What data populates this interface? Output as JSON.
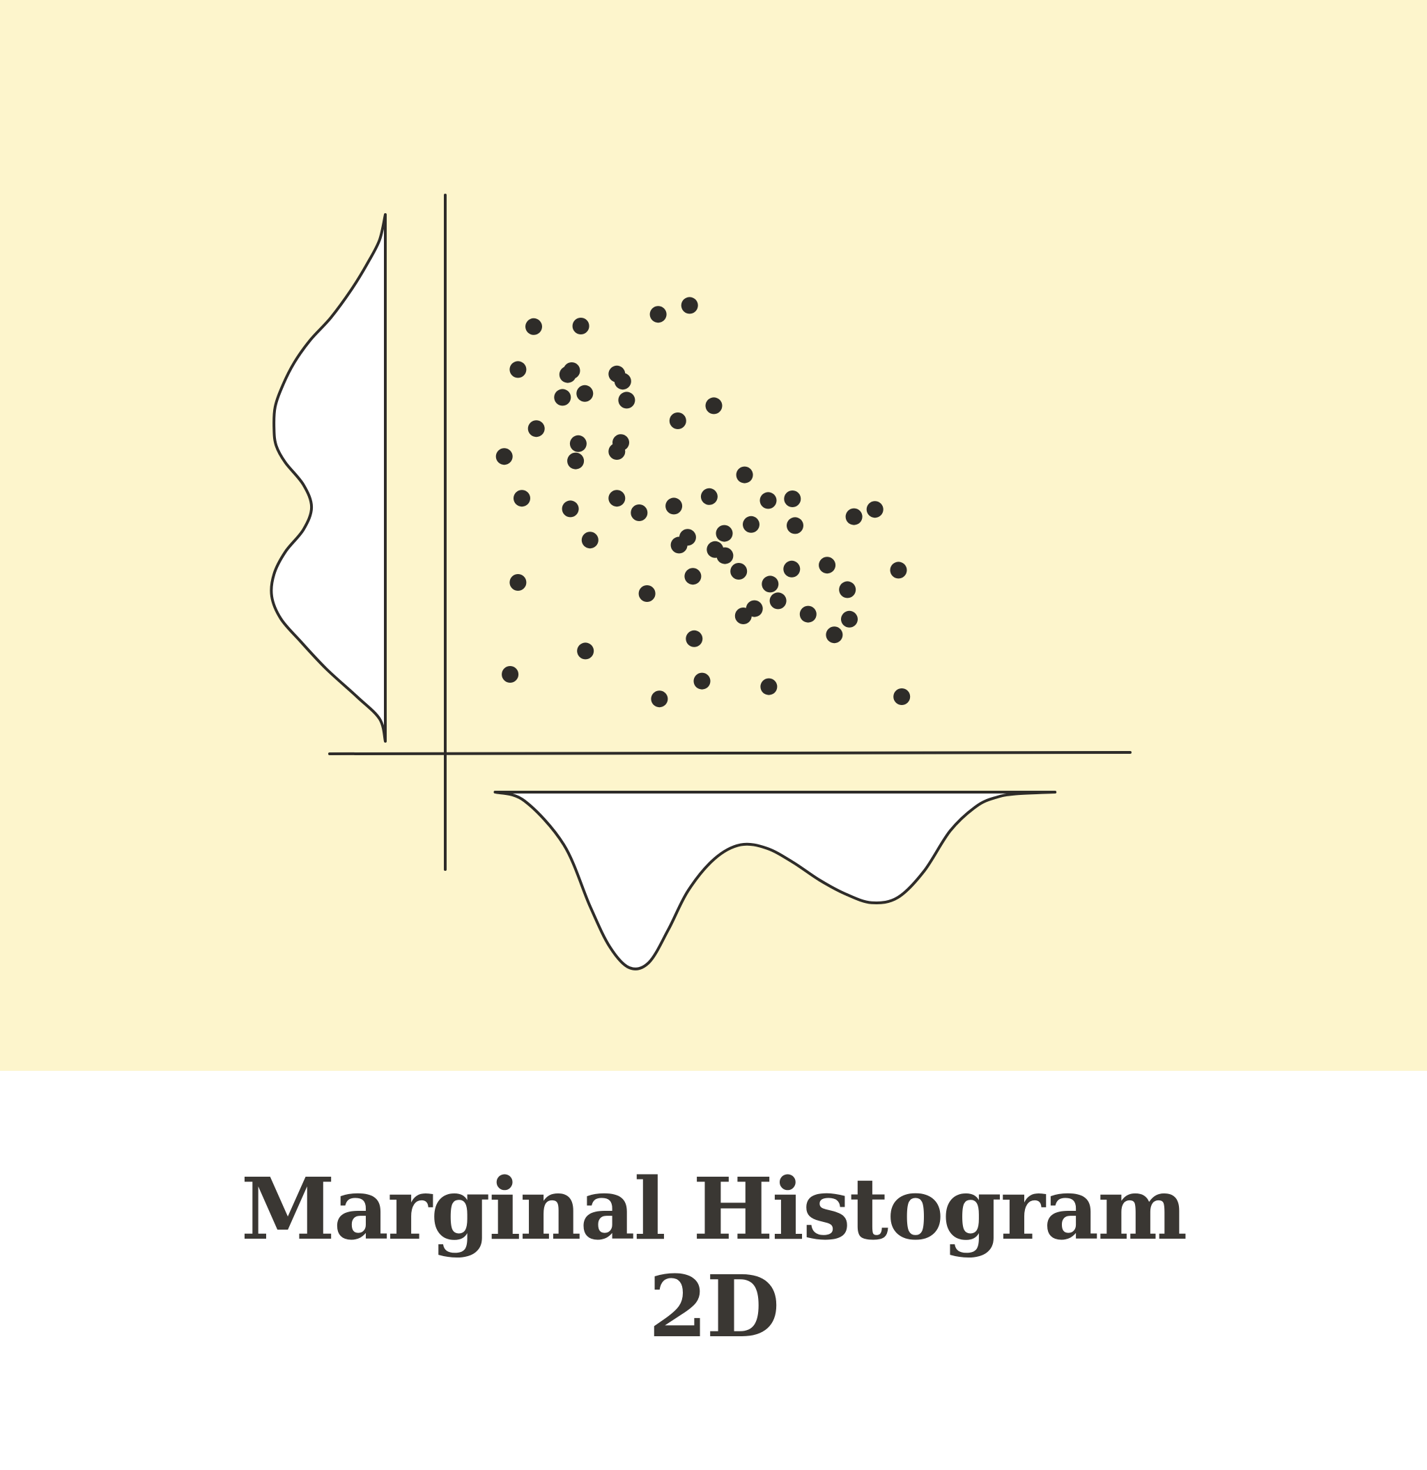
{
  "colors": {
    "panel_background": "#fdf5cc",
    "ink": "#2e2c29",
    "density_fill": "#ffffff",
    "caption_text": "#3a3733",
    "page_background": "#ffffff"
  },
  "caption": {
    "line1": "Marginal Histogram",
    "line2": "2D"
  },
  "chart_data": {
    "type": "scatter",
    "title": "",
    "xlabel": "",
    "ylabel": "",
    "xlim": [
      0,
      100
    ],
    "ylim": [
      0,
      100
    ],
    "grid": false,
    "legend": "none",
    "axis_ticks": "none",
    "marginals": {
      "x": "density curve below the x axis, opening downward",
      "y": "density curve left of the y axis, opening leftward"
    },
    "marginal_x_density": {
      "x": [
        7.5,
        12,
        18,
        22,
        25,
        28,
        31,
        34,
        37,
        41,
        45,
        49,
        53,
        57,
        61,
        65,
        69,
        73,
        77,
        81,
        84,
        87,
        93
      ],
      "density": [
        0,
        0.05,
        0.3,
        0.65,
        0.88,
        1.0,
        0.97,
        0.78,
        0.56,
        0.38,
        0.3,
        0.32,
        0.4,
        0.5,
        0.58,
        0.63,
        0.6,
        0.45,
        0.22,
        0.08,
        0.03,
        0.01,
        0
      ]
    },
    "marginal_y_density": {
      "y": [
        2,
        6,
        10,
        15,
        20,
        24,
        28,
        32,
        36,
        40,
        44,
        48,
        52,
        55,
        58,
        62,
        66,
        70,
        74,
        78,
        83,
        88,
        92,
        96.5
      ],
      "density": [
        0,
        0.05,
        0.25,
        0.52,
        0.75,
        0.92,
        1.0,
        0.98,
        0.88,
        0.72,
        0.65,
        0.72,
        0.88,
        0.96,
        0.98,
        0.97,
        0.9,
        0.8,
        0.66,
        0.48,
        0.3,
        0.15,
        0.05,
        0
      ]
    },
    "points": [
      {
        "x": 13.4,
        "y": 76.4
      },
      {
        "x": 20.6,
        "y": 76.5
      },
      {
        "x": 32.4,
        "y": 78.6
      },
      {
        "x": 37.2,
        "y": 80.2
      },
      {
        "x": 11.0,
        "y": 68.7
      },
      {
        "x": 19.2,
        "y": 68.5
      },
      {
        "x": 18.6,
        "y": 67.8
      },
      {
        "x": 26.1,
        "y": 67.9
      },
      {
        "x": 27.0,
        "y": 66.6
      },
      {
        "x": 17.8,
        "y": 63.7
      },
      {
        "x": 21.2,
        "y": 64.4
      },
      {
        "x": 27.6,
        "y": 63.2
      },
      {
        "x": 40.9,
        "y": 62.2
      },
      {
        "x": 35.4,
        "y": 59.5
      },
      {
        "x": 13.8,
        "y": 58.1
      },
      {
        "x": 20.2,
        "y": 55.4
      },
      {
        "x": 26.7,
        "y": 55.6
      },
      {
        "x": 26.1,
        "y": 54.0
      },
      {
        "x": 8.9,
        "y": 53.1
      },
      {
        "x": 19.8,
        "y": 52.3
      },
      {
        "x": 11.6,
        "y": 45.6
      },
      {
        "x": 19.0,
        "y": 43.7
      },
      {
        "x": 26.1,
        "y": 45.6
      },
      {
        "x": 29.5,
        "y": 43.0
      },
      {
        "x": 34.8,
        "y": 44.2
      },
      {
        "x": 40.2,
        "y": 45.9
      },
      {
        "x": 45.6,
        "y": 49.8
      },
      {
        "x": 49.2,
        "y": 45.2
      },
      {
        "x": 22.0,
        "y": 38.1
      },
      {
        "x": 35.6,
        "y": 37.2
      },
      {
        "x": 36.9,
        "y": 38.6
      },
      {
        "x": 41.1,
        "y": 36.4
      },
      {
        "x": 42.5,
        "y": 39.3
      },
      {
        "x": 42.6,
        "y": 35.3
      },
      {
        "x": 46.6,
        "y": 40.9
      },
      {
        "x": 53.3,
        "y": 40.7
      },
      {
        "x": 52.9,
        "y": 45.5
      },
      {
        "x": 62.3,
        "y": 42.3
      },
      {
        "x": 65.5,
        "y": 43.6
      },
      {
        "x": 37.7,
        "y": 31.6
      },
      {
        "x": 44.7,
        "y": 32.5
      },
      {
        "x": 49.5,
        "y": 30.2
      },
      {
        "x": 52.8,
        "y": 32.9
      },
      {
        "x": 58.2,
        "y": 33.6
      },
      {
        "x": 61.3,
        "y": 29.2
      },
      {
        "x": 69.1,
        "y": 32.7
      },
      {
        "x": 11.0,
        "y": 30.5
      },
      {
        "x": 30.7,
        "y": 28.5
      },
      {
        "x": 45.4,
        "y": 24.5
      },
      {
        "x": 47.1,
        "y": 25.8
      },
      {
        "x": 50.7,
        "y": 27.2
      },
      {
        "x": 55.3,
        "y": 24.8
      },
      {
        "x": 59.3,
        "y": 21.1
      },
      {
        "x": 61.6,
        "y": 23.9
      },
      {
        "x": 21.3,
        "y": 18.2
      },
      {
        "x": 37.9,
        "y": 20.4
      },
      {
        "x": 9.8,
        "y": 14.0
      },
      {
        "x": 32.6,
        "y": 9.6
      },
      {
        "x": 39.1,
        "y": 12.8
      },
      {
        "x": 49.3,
        "y": 11.8
      },
      {
        "x": 69.6,
        "y": 10.0
      }
    ]
  }
}
